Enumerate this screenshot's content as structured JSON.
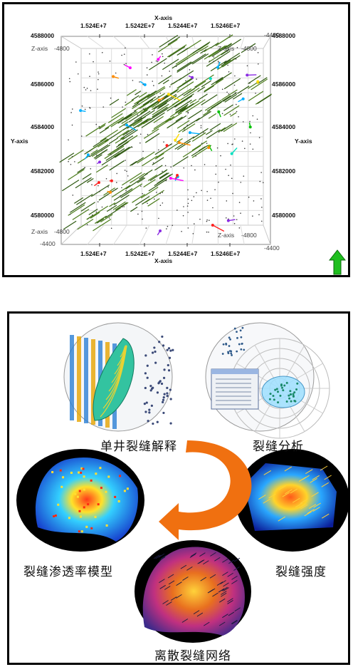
{
  "top_panel": {
    "x_axis_label": "X-axis",
    "y_axis_label": "Y-axis",
    "x_ticks": [
      "1.524E+7",
      "1.5242E+7",
      "1.5244E+7",
      "1.5246E+7"
    ],
    "y_ticks": [
      "4588000",
      "4586000",
      "4584000",
      "4582000",
      "4580000"
    ],
    "z_axis_label": "Z-axis",
    "z_ticks": [
      "-4800",
      "-4400"
    ],
    "z_ticks_right": [
      "-4400",
      "-4800"
    ],
    "corner_label_top_left": "4588000",
    "corner_label_top_right": "4588000",
    "north_arrow_color": "#1fbf1f"
  },
  "bottom_panel": {
    "labels": {
      "single_well": "单井裂缝解释",
      "analysis": "裂缝分析",
      "permeability": "裂缝渗透率模型",
      "intensity": "裂缝强度",
      "dfn": "离散裂缝网络"
    },
    "arrow_color": "#f07010"
  }
}
